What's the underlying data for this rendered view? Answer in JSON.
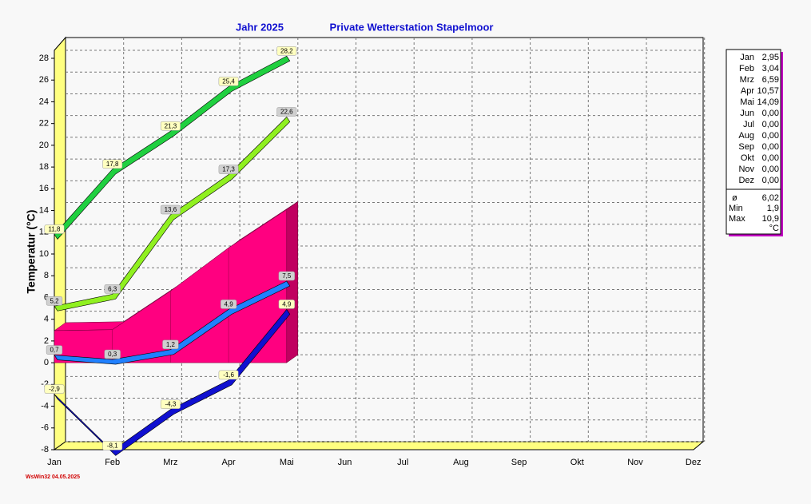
{
  "chart_data": {
    "type": "line",
    "title": "Jahr  2025",
    "subtitle": "Private Wetterstation Stapelmoor",
    "y_label": "Temperatur  (°C)",
    "categories": [
      "Jan",
      "Feb",
      "Mrz",
      "Apr",
      "Mai",
      "Jun",
      "Jul",
      "Aug",
      "Sep",
      "Okt",
      "Nov",
      "Dez"
    ],
    "ylim": [
      -8,
      28
    ],
    "yticks": [
      -8,
      -6,
      -4,
      -2,
      0,
      2,
      4,
      6,
      8,
      10,
      12,
      14,
      16,
      18,
      20,
      22,
      24,
      26,
      28
    ],
    "grid": true,
    "area": {
      "color": "#ff0080",
      "values": [
        2.95,
        3.04,
        6.59,
        10.57,
        14.09,
        null,
        null,
        null,
        null,
        null,
        null,
        null
      ]
    },
    "series": [
      {
        "color": "#20d040",
        "label_bg": "#ffffc0",
        "values": [
          11.8,
          17.8,
          21.3,
          25.4,
          28.2,
          null,
          null,
          null,
          null,
          null,
          null,
          null
        ],
        "value_labels": [
          "11,8",
          "17,8",
          "21,3",
          "25,4",
          "28,2",
          null,
          null,
          null,
          null,
          null,
          null,
          null
        ]
      },
      {
        "color": "#90f020",
        "label_bg": "#d0d0d0",
        "values": [
          5.2,
          6.3,
          13.6,
          17.3,
          22.6,
          null,
          null,
          null,
          null,
          null,
          null,
          null
        ],
        "value_labels": [
          "5,2",
          "6,3",
          "13,6",
          "17,3",
          "22,6",
          null,
          null,
          null,
          null,
          null,
          null,
          null
        ]
      },
      {
        "color": "#2080ff",
        "label_bg": "#d0d0d0",
        "values": [
          0.7,
          0.3,
          1.2,
          4.9,
          7.5,
          null,
          null,
          null,
          null,
          null,
          null,
          null
        ],
        "value_labels": [
          "0,7",
          "0,3",
          "1,2",
          "4,9",
          "7,5",
          null,
          null,
          null,
          null,
          null,
          null,
          null
        ]
      },
      {
        "color": "#1010d0",
        "label_bg": "#ffffc0",
        "values": [
          -2.9,
          -8.1,
          -4.3,
          -1.6,
          4.9,
          null,
          null,
          null,
          null,
          null,
          null,
          null
        ],
        "value_labels": [
          "-2,9",
          "-8,1",
          "-4,3",
          "-1,6",
          "4,9",
          null,
          null,
          null,
          null,
          null,
          null,
          null
        ]
      }
    ],
    "stats": {
      "rows": [
        [
          "Jan",
          "2,95"
        ],
        [
          "Feb",
          "3,04"
        ],
        [
          "Mrz",
          "6,59"
        ],
        [
          "Apr",
          "10,57"
        ],
        [
          "Mai",
          "14,09"
        ],
        [
          "Jun",
          "0,00"
        ],
        [
          "Jul",
          "0,00"
        ],
        [
          "Aug",
          "0,00"
        ],
        [
          "Sep",
          "0,00"
        ],
        [
          "Okt",
          "0,00"
        ],
        [
          "Nov",
          "0,00"
        ],
        [
          "Dez",
          "0,00"
        ]
      ],
      "summary": [
        [
          "ø",
          "6,02"
        ],
        [
          "Min",
          "1,9"
        ],
        [
          "Max",
          "10,9"
        ]
      ],
      "unit": "°C"
    },
    "footer": "WsWin32  04.05.2025"
  }
}
